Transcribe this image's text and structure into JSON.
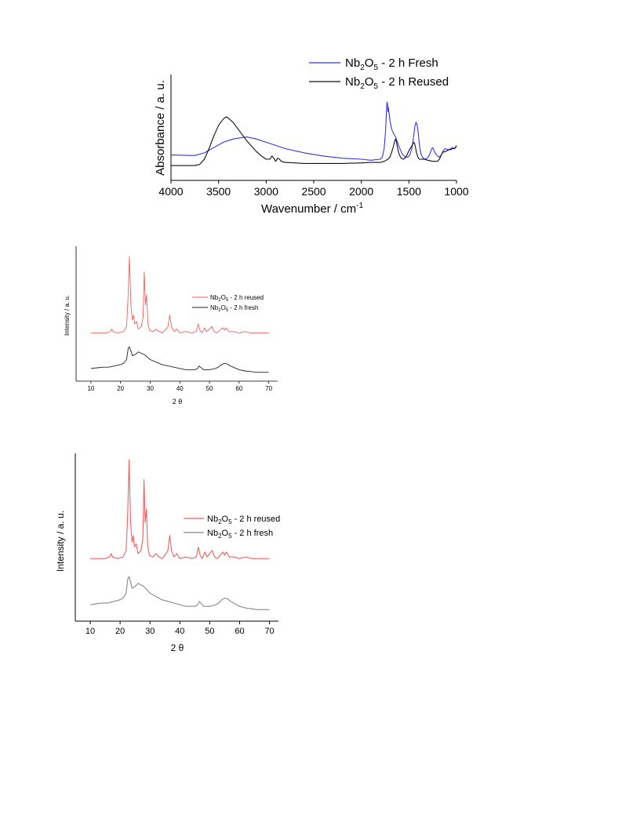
{
  "chart_data": [
    {
      "type": "line",
      "xlabel_main": "Wavenumber / cm",
      "xlabel_sup": "-1",
      "ylabel": "Absorbance / a. u.",
      "xlim": [
        4000,
        1000
      ],
      "x_reversed": true,
      "xticks": [
        "4000",
        "3500",
        "3000",
        "2500",
        "2000",
        "1500",
        "1000"
      ],
      "ylim": [
        0,
        1
      ],
      "y_tick_labels": false,
      "legend_position": "top-right",
      "series": [
        {
          "name_parts": [
            "Nb",
            "2",
            "O",
            "5",
            " - 2 h Fresh"
          ],
          "color": "#3333ee",
          "x": [
            4000,
            3750,
            3650,
            3550,
            3450,
            3350,
            3250,
            3200,
            3100,
            3000,
            2900,
            2800,
            2600,
            2400,
            2200,
            2000,
            1900,
            1800,
            1780,
            1760,
            1745,
            1735,
            1730,
            1725,
            1720,
            1715,
            1710,
            1700,
            1690,
            1680,
            1660,
            1640,
            1620,
            1600,
            1570,
            1540,
            1510,
            1490,
            1470,
            1455,
            1445,
            1435,
            1425,
            1415,
            1405,
            1395,
            1385,
            1370,
            1350,
            1330,
            1310,
            1290,
            1275,
            1260,
            1250,
            1240,
            1225,
            1200,
            1180,
            1160,
            1140,
            1120,
            1100,
            1080,
            1060,
            1040,
            1020,
            1000
          ],
          "y": [
            0.24,
            0.235,
            0.26,
            0.31,
            0.36,
            0.39,
            0.405,
            0.41,
            0.39,
            0.36,
            0.33,
            0.3,
            0.26,
            0.23,
            0.21,
            0.2,
            0.19,
            0.2,
            0.22,
            0.3,
            0.47,
            0.67,
            0.74,
            0.72,
            0.65,
            0.69,
            0.64,
            0.57,
            0.52,
            0.48,
            0.44,
            0.41,
            0.36,
            0.31,
            0.25,
            0.22,
            0.22,
            0.24,
            0.3,
            0.38,
            0.46,
            0.52,
            0.55,
            0.53,
            0.47,
            0.38,
            0.3,
            0.24,
            0.21,
            0.2,
            0.21,
            0.23,
            0.26,
            0.3,
            0.31,
            0.29,
            0.26,
            0.23,
            0.22,
            0.24,
            0.28,
            0.3,
            0.29,
            0.29,
            0.3,
            0.31,
            0.3,
            0.33
          ]
        },
        {
          "name_parts": [
            "Nb",
            "2",
            "O",
            "5",
            " - 2 h Reused"
          ],
          "color": "#111111",
          "x": [
            4000,
            3800,
            3750,
            3700,
            3650,
            3600,
            3550,
            3500,
            3450,
            3420,
            3400,
            3350,
            3300,
            3250,
            3200,
            3150,
            3100,
            3050,
            3000,
            2960,
            2940,
            2920,
            2900,
            2880,
            2860,
            2840,
            2800,
            2600,
            2400,
            2200,
            2000,
            1900,
            1800,
            1760,
            1720,
            1700,
            1680,
            1660,
            1650,
            1640,
            1630,
            1620,
            1610,
            1600,
            1580,
            1560,
            1540,
            1520,
            1500,
            1480,
            1460,
            1450,
            1440,
            1430,
            1420,
            1410,
            1400,
            1390,
            1380,
            1360,
            1340,
            1300,
            1250,
            1200,
            1180,
            1160,
            1140,
            1120,
            1100,
            1080,
            1060,
            1040,
            1020,
            1000
          ],
          "y": [
            0.14,
            0.14,
            0.14,
            0.15,
            0.2,
            0.3,
            0.42,
            0.52,
            0.58,
            0.6,
            0.59,
            0.55,
            0.49,
            0.43,
            0.37,
            0.32,
            0.27,
            0.23,
            0.2,
            0.2,
            0.23,
            0.21,
            0.18,
            0.21,
            0.2,
            0.18,
            0.17,
            0.16,
            0.16,
            0.16,
            0.165,
            0.17,
            0.17,
            0.18,
            0.2,
            0.22,
            0.27,
            0.33,
            0.37,
            0.39,
            0.36,
            0.31,
            0.27,
            0.24,
            0.21,
            0.2,
            0.21,
            0.24,
            0.28,
            0.31,
            0.34,
            0.36,
            0.35,
            0.31,
            0.26,
            0.23,
            0.21,
            0.2,
            0.2,
            0.2,
            0.2,
            0.19,
            0.18,
            0.18,
            0.2,
            0.24,
            0.27,
            0.27,
            0.28,
            0.29,
            0.29,
            0.3,
            0.3,
            0.32
          ]
        }
      ]
    },
    {
      "type": "line",
      "xlabel": "2 θ",
      "ylabel": "Intensity / a. u.",
      "xlim": [
        5,
        73
      ],
      "xticks": [
        "10",
        "20",
        "30",
        "40",
        "50",
        "60",
        "70"
      ],
      "ylim": [
        0,
        1
      ],
      "y_tick_labels": false,
      "legend_position": "right",
      "series": [
        {
          "name_parts": [
            "Nb",
            "2",
            "O",
            "5",
            " - 2 h reused"
          ],
          "color": "#f06060",
          "baseline": 0.38,
          "x": [
            10,
            15,
            16.5,
            17,
            17.5,
            19,
            21,
            22,
            22.5,
            23,
            23.5,
            24,
            24.4,
            24.8,
            25.4,
            26,
            27,
            27.6,
            28,
            28.4,
            28.8,
            29.2,
            29.8,
            31,
            32,
            33,
            34,
            35,
            36,
            36.6,
            37.2,
            38,
            39,
            40,
            42,
            44,
            45.5,
            46.2,
            46.8,
            47.5,
            48.4,
            49,
            50,
            50.8,
            51.6,
            52.5,
            53.5,
            54.5,
            55,
            55.6,
            56.5,
            58,
            60,
            62,
            64,
            66,
            68,
            70
          ],
          "y": [
            0.38,
            0.38,
            0.39,
            0.41,
            0.39,
            0.38,
            0.39,
            0.43,
            0.63,
            0.98,
            0.6,
            0.48,
            0.52,
            0.45,
            0.47,
            0.41,
            0.43,
            0.5,
            0.86,
            0.6,
            0.68,
            0.46,
            0.4,
            0.39,
            0.41,
            0.39,
            0.38,
            0.4,
            0.43,
            0.52,
            0.43,
            0.39,
            0.41,
            0.38,
            0.39,
            0.38,
            0.39,
            0.45,
            0.4,
            0.38,
            0.42,
            0.39,
            0.41,
            0.43,
            0.39,
            0.38,
            0.4,
            0.42,
            0.4,
            0.42,
            0.39,
            0.39,
            0.38,
            0.39,
            0.38,
            0.38,
            0.38,
            0.38
          ]
        },
        {
          "name_parts": [
            "Nb",
            "2",
            "O",
            "5",
            " - 2 h fresh"
          ],
          "color": "#222222",
          "x": [
            10,
            12,
            14,
            16,
            18,
            20,
            21,
            22,
            22.6,
            23,
            23.6,
            24,
            25,
            26,
            27,
            28,
            29,
            30,
            32,
            34,
            36,
            38,
            40,
            42,
            44,
            45,
            46,
            46.5,
            47,
            48,
            50,
            52,
            53,
            54,
            55,
            56,
            57,
            58,
            60,
            62,
            64,
            66,
            68,
            70
          ],
          "y": [
            0.1,
            0.105,
            0.11,
            0.11,
            0.12,
            0.13,
            0.14,
            0.17,
            0.26,
            0.27,
            0.23,
            0.2,
            0.21,
            0.23,
            0.22,
            0.21,
            0.19,
            0.17,
            0.15,
            0.13,
            0.12,
            0.11,
            0.1,
            0.09,
            0.09,
            0.09,
            0.1,
            0.12,
            0.11,
            0.09,
            0.09,
            0.1,
            0.11,
            0.13,
            0.14,
            0.135,
            0.12,
            0.11,
            0.09,
            0.08,
            0.075,
            0.07,
            0.07,
            0.07
          ]
        }
      ]
    },
    {
      "type": "line",
      "xlabel": "2 θ",
      "ylabel": "Intensity / a. u.",
      "xlim": [
        5,
        73
      ],
      "xticks": [
        "10",
        "20",
        "30",
        "40",
        "50",
        "60",
        "70"
      ],
      "ylim": [
        0,
        1
      ],
      "y_tick_labels": false,
      "legend_position": "right",
      "series": [
        {
          "name_parts": [
            "Nb",
            "2",
            "O",
            "5",
            " - 2 h reused"
          ],
          "color": "#f06060",
          "x": [
            10,
            15,
            16.5,
            17,
            17.5,
            19,
            21,
            22,
            22.5,
            23,
            23.5,
            24,
            24.4,
            24.8,
            25.4,
            26,
            27,
            27.6,
            28,
            28.4,
            28.8,
            29.2,
            29.8,
            31,
            32,
            33,
            34,
            35,
            36,
            36.6,
            37.2,
            38,
            39,
            40,
            42,
            44,
            45.5,
            46.2,
            46.8,
            47.5,
            48.4,
            49,
            50,
            50.8,
            51.6,
            52.5,
            53.5,
            54.5,
            55,
            55.6,
            56.5,
            58,
            60,
            62,
            64,
            66,
            68,
            70
          ],
          "y": [
            0.38,
            0.38,
            0.39,
            0.41,
            0.39,
            0.38,
            0.39,
            0.43,
            0.63,
            0.98,
            0.6,
            0.48,
            0.52,
            0.45,
            0.47,
            0.41,
            0.43,
            0.5,
            0.86,
            0.6,
            0.68,
            0.46,
            0.4,
            0.39,
            0.41,
            0.39,
            0.38,
            0.4,
            0.43,
            0.52,
            0.43,
            0.39,
            0.41,
            0.38,
            0.39,
            0.38,
            0.39,
            0.45,
            0.4,
            0.38,
            0.42,
            0.39,
            0.41,
            0.43,
            0.39,
            0.38,
            0.4,
            0.42,
            0.4,
            0.42,
            0.39,
            0.39,
            0.38,
            0.39,
            0.38,
            0.38,
            0.38,
            0.38
          ]
        },
        {
          "name_parts": [
            "Nb",
            "2",
            "O",
            "5",
            " - 2 h fresh"
          ],
          "color": "#888888",
          "x": [
            10,
            12,
            14,
            16,
            18,
            20,
            21,
            22,
            22.6,
            23,
            23.6,
            24,
            25,
            26,
            27,
            28,
            29,
            30,
            32,
            34,
            36,
            38,
            40,
            42,
            44,
            45,
            46,
            46.5,
            47,
            48,
            50,
            52,
            53,
            54,
            55,
            56,
            57,
            58,
            60,
            62,
            64,
            66,
            68,
            70
          ],
          "y": [
            0.1,
            0.105,
            0.11,
            0.11,
            0.12,
            0.13,
            0.14,
            0.17,
            0.26,
            0.27,
            0.23,
            0.2,
            0.21,
            0.23,
            0.22,
            0.21,
            0.19,
            0.17,
            0.15,
            0.13,
            0.12,
            0.11,
            0.1,
            0.09,
            0.09,
            0.09,
            0.1,
            0.12,
            0.11,
            0.09,
            0.09,
            0.1,
            0.11,
            0.13,
            0.14,
            0.135,
            0.12,
            0.11,
            0.09,
            0.08,
            0.075,
            0.07,
            0.07,
            0.07
          ]
        }
      ]
    }
  ]
}
